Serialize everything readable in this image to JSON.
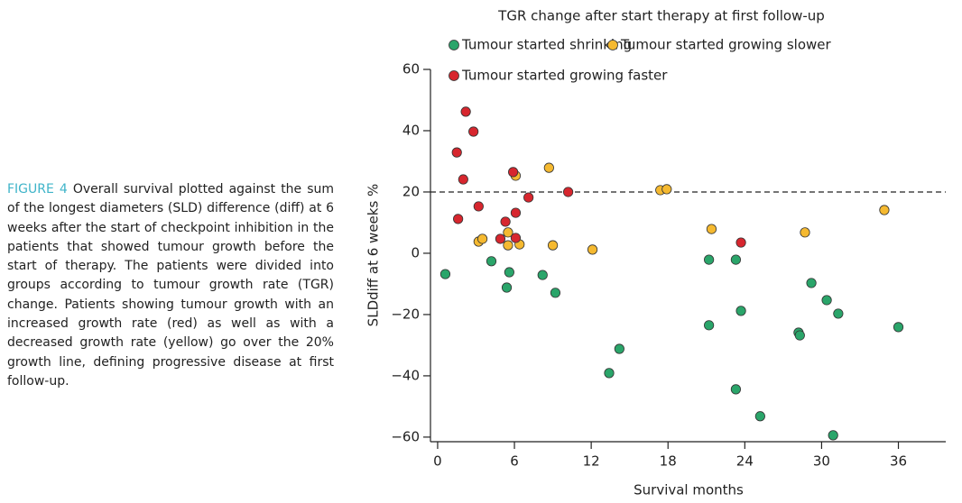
{
  "caption": {
    "label": "FIGURE 4",
    "text": "Overall survival plotted against the sum of the longest diameters (SLD) difference (diff) at 6 weeks after the start of checkpoint inhibition in the patients that showed tumour growth before the start of therapy. The patients were divided into groups according to tumour growth rate (TGR) change. Patients showing tumour growth with an increased growth rate (red) as well as with a decreased growth rate (yellow) go over the 20% growth line, defining progressive disease at first follow-up."
  },
  "chart_data": {
    "type": "scatter",
    "title": "TGR change after start therapy at first follow-up",
    "x_label": "Survival months",
    "y_label": "SLDdiff at 6 weeks %",
    "xlim": [
      -0.56,
      39.7
    ],
    "ylim": [
      -61.5,
      60
    ],
    "xticks": [
      0,
      6,
      12,
      18,
      24,
      30,
      36
    ],
    "yticks": [
      {
        "value": -60,
        "label": "−60"
      },
      {
        "value": -40,
        "label": "−40"
      },
      {
        "value": -20,
        "label": "−20"
      },
      0,
      20,
      40,
      60
    ],
    "reference_line": 20,
    "series": [
      {
        "name": "Tumour started shrinking",
        "color": "#2aa56a",
        "x": [
          0.6,
          4.2,
          5.6,
          5.4,
          8.2,
          9.2,
          14.2,
          13.4,
          21.2,
          21.2,
          23.3,
          23.7,
          23.3,
          25.2,
          29.2,
          28.2,
          28.3,
          30.4,
          31.3,
          30.9,
          36.0
        ],
        "values": [
          -6.8,
          -2.6,
          -6.2,
          -11.2,
          -7.1,
          -12.9,
          -31.2,
          -39.1,
          -2.1,
          -23.5,
          -2.1,
          -18.8,
          -44.4,
          -53.2,
          -9.7,
          -25.9,
          -26.8,
          -15.3,
          -19.7,
          -59.4,
          -24.1
        ]
      },
      {
        "name": "Tumour started growing slower",
        "color": "#f5b930",
        "x": [
          3.2,
          3.5,
          5.5,
          5.5,
          6.4,
          6.1,
          8.7,
          9.0,
          12.1,
          17.4,
          17.9,
          21.4,
          28.7,
          34.9
        ],
        "values": [
          3.8,
          4.7,
          6.8,
          2.6,
          2.9,
          25.3,
          27.9,
          2.6,
          1.2,
          20.6,
          20.9,
          7.9,
          6.8,
          14.1
        ]
      },
      {
        "name": "Tumour started growing faster",
        "color": "#d7262e",
        "x": [
          2.2,
          1.5,
          2.8,
          2.0,
          3.2,
          1.6,
          5.9,
          6.1,
          4.9,
          5.3,
          7.1,
          6.1,
          10.2,
          23.7
        ],
        "values": [
          46.2,
          32.9,
          39.7,
          24.1,
          15.3,
          11.2,
          26.5,
          5.0,
          4.7,
          10.3,
          18.2,
          13.2,
          20.0,
          3.5
        ]
      }
    ]
  }
}
